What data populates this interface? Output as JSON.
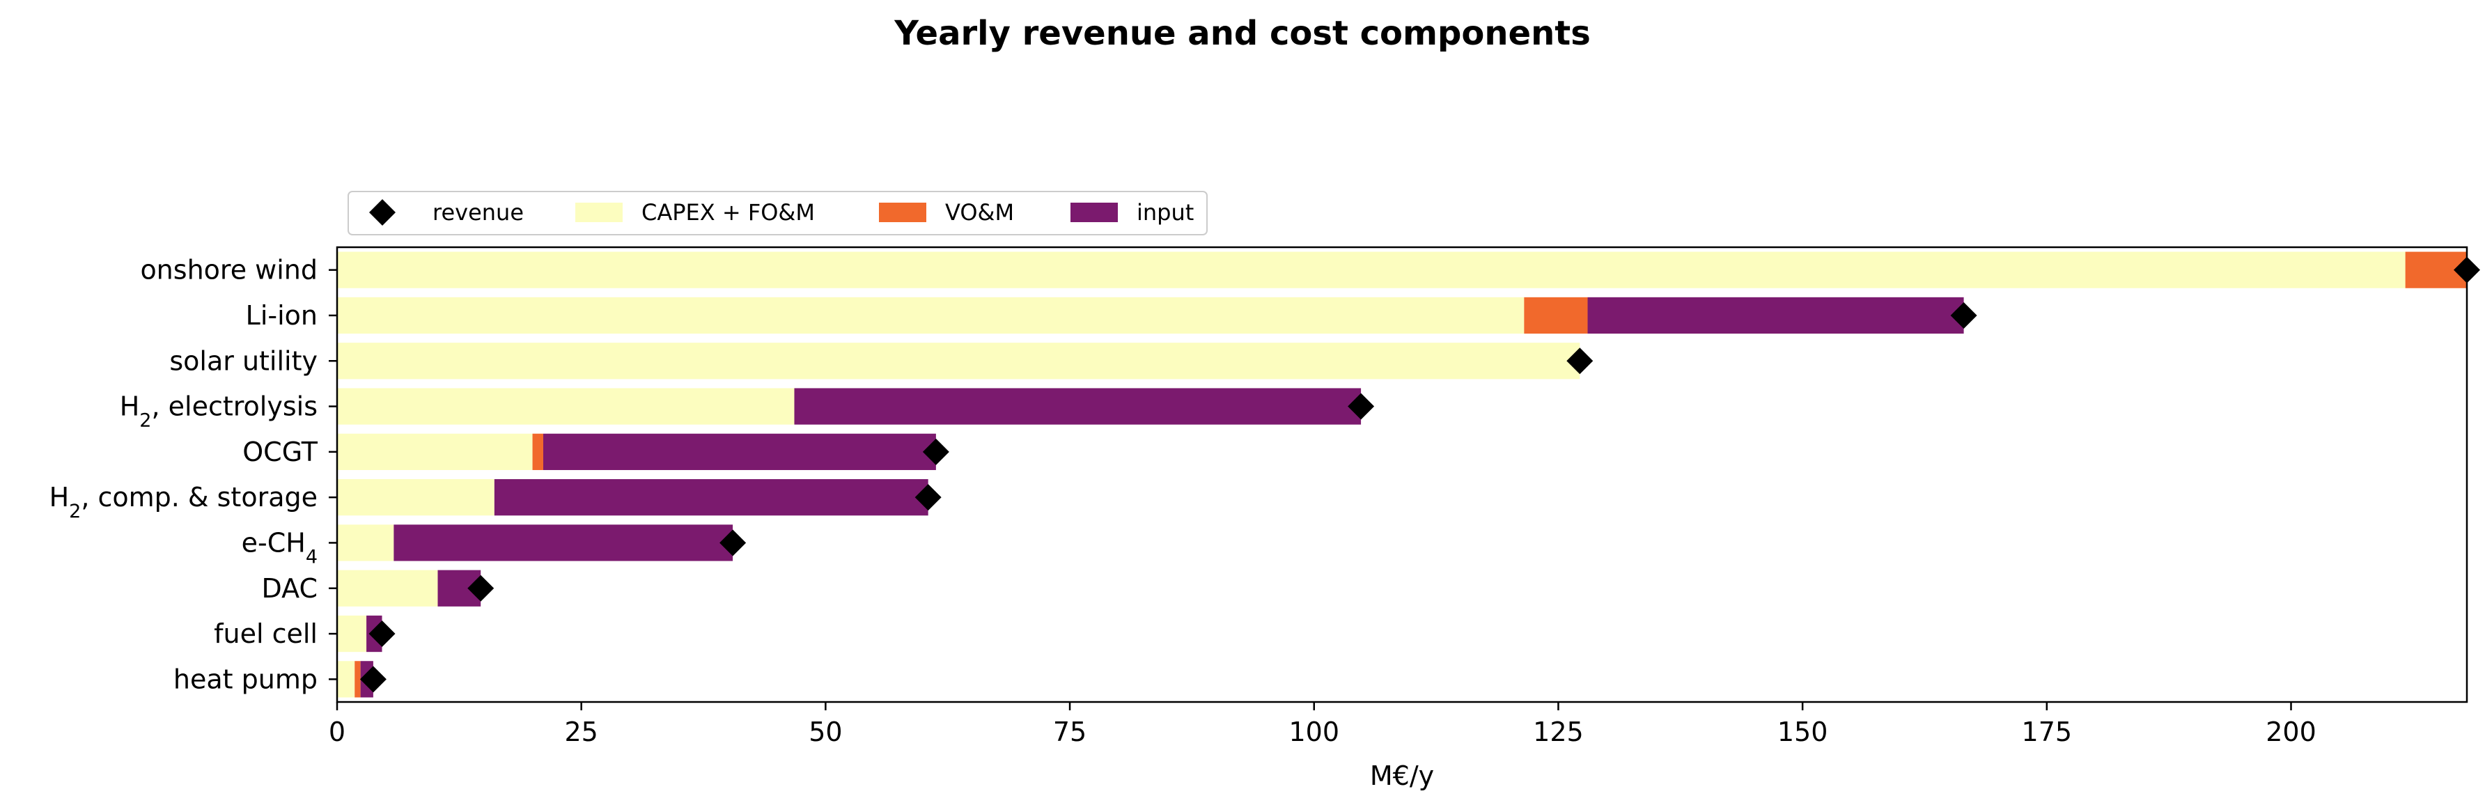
{
  "chart_data": {
    "type": "bar",
    "orientation": "horizontal",
    "stacked": true,
    "title": "Yearly revenue and cost components",
    "xlabel": "M€/y",
    "ylabel": "",
    "xlim": [
      0,
      218
    ],
    "xticks": [
      0,
      25,
      50,
      75,
      100,
      125,
      150,
      175,
      200
    ],
    "grid": false,
    "legend_position": "top-left",
    "categories": [
      "heat pump",
      "fuel cell",
      "DAC",
      "e-CH4",
      "H2, comp. & storage",
      "OCGT",
      "H2, electrolysis",
      "solar utility",
      "Li-ion",
      "onshore wind"
    ],
    "series": [
      {
        "name": "CAPEX + FO&M",
        "color": "#fcfdbf",
        "values": [
          1.8,
          3.0,
          10.3,
          5.8,
          16.1,
          20.0,
          46.8,
          127.2,
          121.5,
          211.7
        ]
      },
      {
        "name": "VO&M",
        "color": "#f1692c",
        "values": [
          0.6,
          0.0,
          0.0,
          0.0,
          0.0,
          1.1,
          0.0,
          0.0,
          6.5,
          6.3
        ]
      },
      {
        "name": "input",
        "color": "#7b1a6e",
        "values": [
          1.3,
          1.6,
          4.4,
          34.7,
          44.4,
          40.2,
          58.0,
          0.0,
          38.5,
          0.0
        ]
      }
    ],
    "revenue": {
      "name": "revenue",
      "color": "#000000",
      "marker": "diamond",
      "values": [
        3.7,
        4.6,
        14.7,
        40.5,
        60.5,
        61.3,
        104.8,
        127.2,
        166.5,
        218.0
      ]
    }
  }
}
